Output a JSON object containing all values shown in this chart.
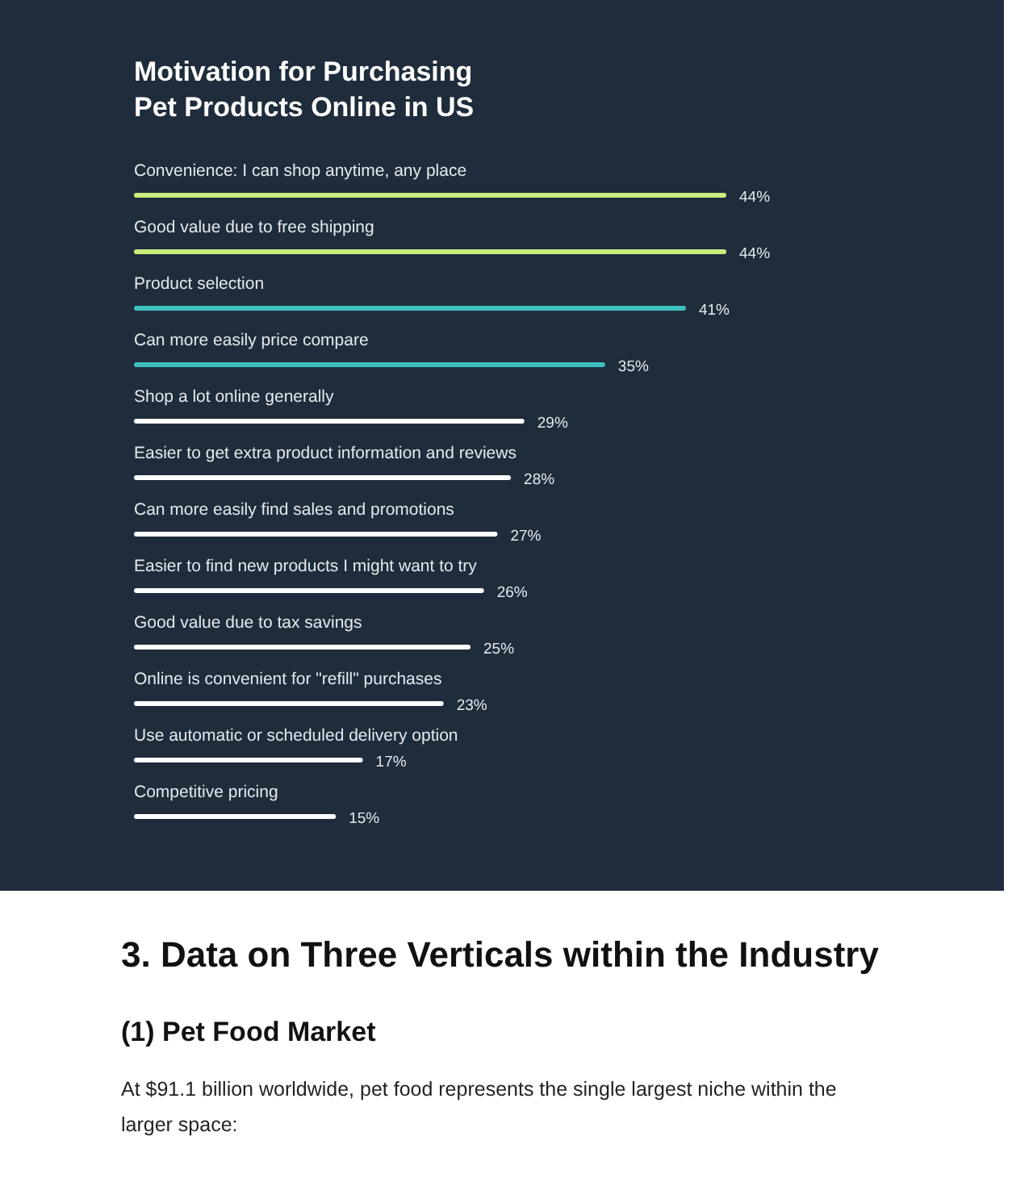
{
  "chart_data": {
    "type": "bar",
    "orientation": "horizontal",
    "title": "Motivation for Purchasing Pet Products Online in US",
    "categories": [
      "Convenience: I can shop anytime, any place",
      "Good value due to free shipping",
      "Product selection",
      "Can more easily price compare",
      "Shop a lot online generally",
      "Easier to get extra product information and reviews",
      "Can more easily find sales and promotions",
      "Easier to find new products I might want to try",
      "Good value due to tax savings",
      "Online is convenient for \"refill\" purchases",
      "Use automatic or scheduled delivery option",
      "Competitive pricing"
    ],
    "values": [
      44,
      44,
      41,
      35,
      29,
      28,
      27,
      26,
      25,
      23,
      17,
      15
    ],
    "colors": [
      "#c9ee7c",
      "#c9ee7c",
      "#3ebfbf",
      "#3ebfbf",
      "#ffffff",
      "#ffffff",
      "#ffffff",
      "#ffffff",
      "#ffffff",
      "#ffffff",
      "#ffffff",
      "#ffffff"
    ],
    "value_labels": [
      "44%",
      "44%",
      "41%",
      "35%",
      "29%",
      "28%",
      "27%",
      "26%",
      "25%",
      "23%",
      "17%",
      "15%"
    ],
    "annotations": [
      "3. Data on Three Verticals within the Industry",
      "(1) Pet Food Market",
      "At $91.1 billion worldwide, pet food represents the single largest niche within the larger space:"
    ]
  }
}
